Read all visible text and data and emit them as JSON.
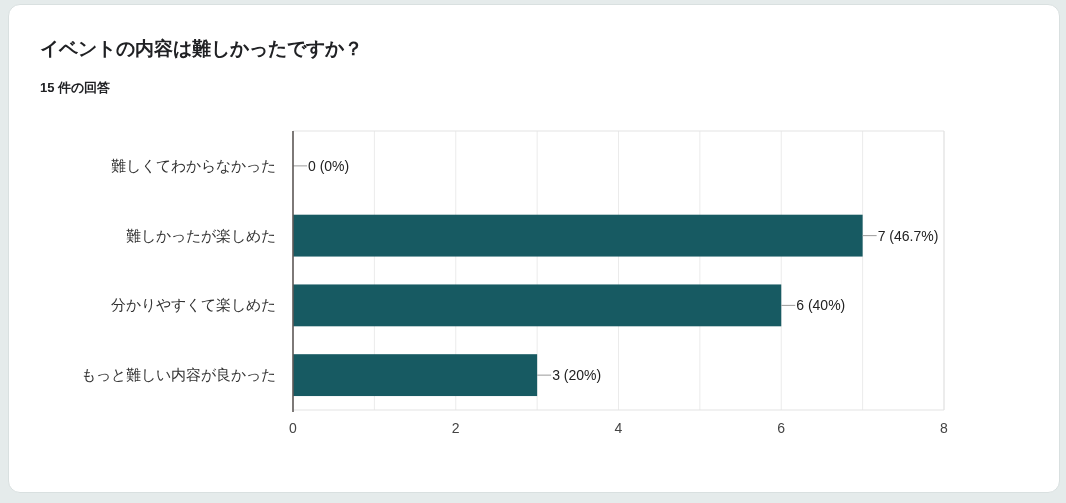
{
  "chart_data": {
    "type": "bar",
    "orientation": "horizontal",
    "title": "イベントの内容は難しかったですか？",
    "subtitle": "15 件の回答",
    "categories": [
      "難しくてわからなかった",
      "難しかったが楽しめた",
      "分かりやすくて楽しめた",
      "もっと難しい内容が良かった"
    ],
    "values": [
      0,
      7,
      6,
      3
    ],
    "value_labels": [
      "0 (0%)",
      "7 (46.7%)",
      "6 (40%)",
      "3 (20%)"
    ],
    "color": "#175a62",
    "xlim": [
      0,
      8
    ],
    "xticks": [
      0,
      {
        "value": 1,
        "label": null
      },
      2,
      {
        "value": 3,
        "label": null
      },
      4,
      {
        "value": 5,
        "label": null
      },
      6,
      {
        "value": 7,
        "label": null
      },
      8
    ],
    "grid": "x"
  }
}
